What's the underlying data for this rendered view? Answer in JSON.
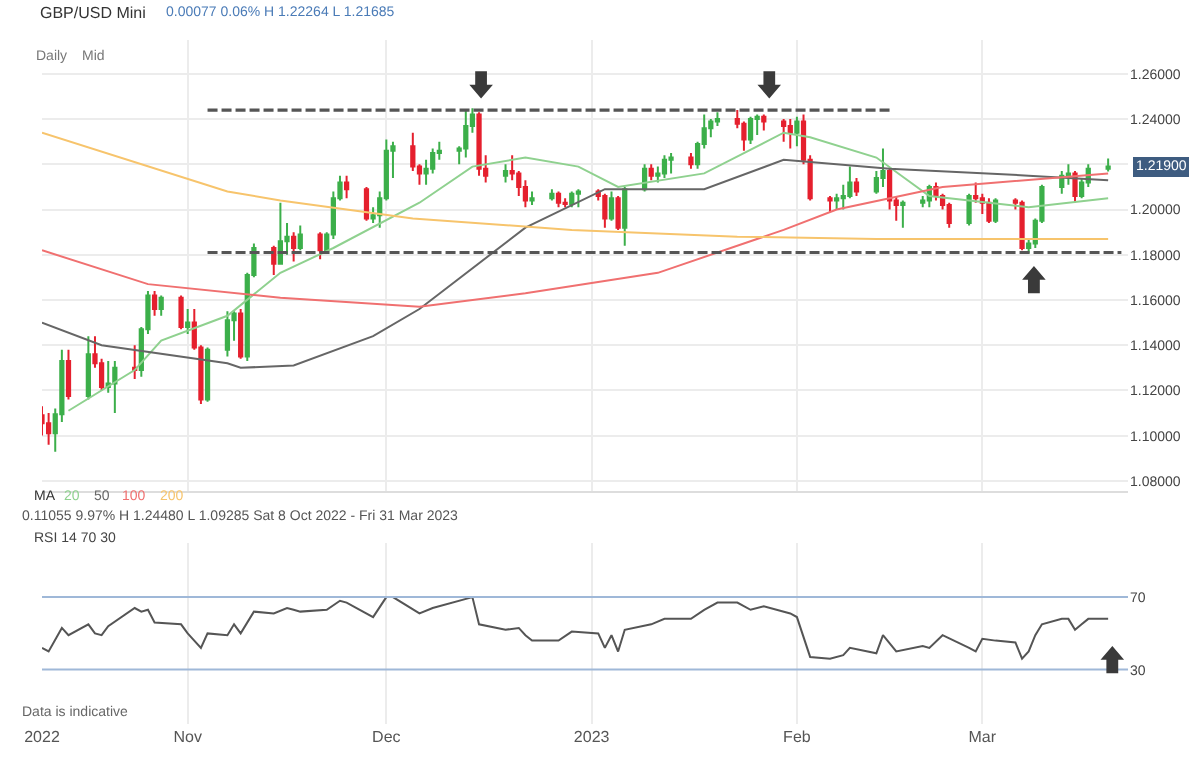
{
  "chart_data": [
    {
      "type": "candlestick",
      "title": "GBP/USD Mini",
      "x": [
        "2022-10-10",
        "2022-10-11",
        "2022-10-12",
        "2022-10-13",
        "2022-10-14",
        "2022-10-17",
        "2022-10-18",
        "2022-10-19",
        "2022-10-20",
        "2022-10-21",
        "2022-10-24",
        "2022-10-25",
        "2022-10-26",
        "2022-10-27",
        "2022-10-28",
        "2022-10-31",
        "2022-11-01",
        "2022-11-02",
        "2022-11-03",
        "2022-11-04",
        "2022-11-07",
        "2022-11-08",
        "2022-11-09",
        "2022-11-10",
        "2022-11-11",
        "2022-11-14",
        "2022-11-15",
        "2022-11-16",
        "2022-11-17",
        "2022-11-18",
        "2022-11-21",
        "2022-11-22",
        "2022-11-23",
        "2022-11-24",
        "2022-11-25",
        "2022-11-28",
        "2022-11-29",
        "2022-11-30",
        "2022-12-01",
        "2022-12-02",
        "2022-12-05",
        "2022-12-06",
        "2022-12-07",
        "2022-12-08",
        "2022-12-09",
        "2022-12-12",
        "2022-12-13",
        "2022-12-14",
        "2022-12-15",
        "2022-12-16",
        "2022-12-19",
        "2022-12-20",
        "2022-12-21",
        "2022-12-22",
        "2022-12-23",
        "2022-12-26",
        "2022-12-27",
        "2022-12-28",
        "2022-12-29",
        "2022-12-30",
        "2023-01-02",
        "2023-01-03",
        "2023-01-04",
        "2023-01-05",
        "2023-01-06",
        "2023-01-09",
        "2023-01-10",
        "2023-01-11",
        "2023-01-12",
        "2023-01-13",
        "2023-01-16",
        "2023-01-17",
        "2023-01-18",
        "2023-01-19",
        "2023-01-20",
        "2023-01-23",
        "2023-01-24",
        "2023-01-25",
        "2023-01-26",
        "2023-01-27",
        "2023-01-30",
        "2023-01-31",
        "2023-02-01",
        "2023-02-02",
        "2023-02-03",
        "2023-02-06",
        "2023-02-07",
        "2023-02-08",
        "2023-02-09",
        "2023-02-10",
        "2023-02-13",
        "2023-02-14",
        "2023-02-15",
        "2023-02-16",
        "2023-02-17",
        "2023-02-20",
        "2023-02-21",
        "2023-02-22",
        "2023-02-23",
        "2023-02-24",
        "2023-02-27",
        "2023-02-28",
        "2023-03-01",
        "2023-03-02",
        "2023-03-03",
        "2023-03-06",
        "2023-03-07",
        "2023-03-08",
        "2023-03-09",
        "2023-03-10",
        "2023-03-13",
        "2023-03-14",
        "2023-03-15",
        "2023-03-16",
        "2023-03-17",
        "2023-03-20"
      ],
      "ohlc": [
        [
          1.109,
          1.113,
          1.1,
          1.1055
        ],
        [
          1.1055,
          1.11,
          1.096,
          1.101
        ],
        [
          1.101,
          1.112,
          1.0929,
          1.1095
        ],
        [
          1.1095,
          1.138,
          1.106,
          1.133
        ],
        [
          1.133,
          1.138,
          1.116,
          1.1175
        ],
        [
          1.1175,
          1.144,
          1.116,
          1.136
        ],
        [
          1.136,
          1.144,
          1.13,
          1.132
        ],
        [
          1.132,
          1.134,
          1.12,
          1.1215
        ],
        [
          1.1215,
          1.133,
          1.119,
          1.123
        ],
        [
          1.123,
          1.133,
          1.11,
          1.13
        ],
        [
          1.13,
          1.14,
          1.125,
          1.129
        ],
        [
          1.129,
          1.148,
          1.126,
          1.147
        ],
        [
          1.147,
          1.164,
          1.145,
          1.162
        ],
        [
          1.162,
          1.164,
          1.153,
          1.156
        ],
        [
          1.156,
          1.162,
          1.153,
          1.161
        ],
        [
          1.161,
          1.162,
          1.147,
          1.148
        ],
        [
          1.148,
          1.156,
          1.145,
          1.15
        ],
        [
          1.15,
          1.156,
          1.138,
          1.139
        ],
        [
          1.139,
          1.14,
          1.114,
          1.116
        ],
        [
          1.116,
          1.139,
          1.115,
          1.138
        ],
        [
          1.138,
          1.155,
          1.135,
          1.151
        ],
        [
          1.151,
          1.155,
          1.142,
          1.154
        ],
        [
          1.154,
          1.156,
          1.134,
          1.135
        ],
        [
          1.135,
          1.172,
          1.133,
          1.171
        ],
        [
          1.171,
          1.185,
          1.17,
          1.183
        ],
        [
          1.183,
          1.184,
          1.171,
          1.176
        ],
        [
          1.176,
          1.203,
          1.176,
          1.186
        ],
        [
          1.186,
          1.194,
          1.18,
          1.188
        ],
        [
          1.188,
          1.19,
          1.177,
          1.183
        ],
        [
          1.183,
          1.193,
          1.182,
          1.189
        ],
        [
          1.189,
          1.19,
          1.178,
          1.182
        ],
        [
          1.182,
          1.19,
          1.181,
          1.189
        ],
        [
          1.189,
          1.208,
          1.187,
          1.205
        ],
        [
          1.205,
          1.215,
          1.204,
          1.212
        ],
        [
          1.212,
          1.215,
          1.205,
          1.209
        ],
        [
          1.209,
          1.21,
          1.195,
          1.196
        ],
        [
          1.196,
          1.201,
          1.194,
          1.1975
        ],
        [
          1.1975,
          1.208,
          1.192,
          1.205
        ],
        [
          1.205,
          1.231,
          1.204,
          1.226
        ],
        [
          1.226,
          1.23,
          1.214,
          1.228
        ],
        [
          1.228,
          1.234,
          1.217,
          1.219
        ],
        [
          1.219,
          1.22,
          1.211,
          1.216
        ],
        [
          1.216,
          1.222,
          1.211,
          1.218
        ],
        [
          1.218,
          1.227,
          1.216,
          1.225
        ],
        [
          1.225,
          1.23,
          1.222,
          1.226
        ],
        [
          1.226,
          1.228,
          1.22,
          1.227
        ],
        [
          1.227,
          1.2445,
          1.223,
          1.237
        ],
        [
          1.237,
          1.2448,
          1.234,
          1.242
        ],
        [
          1.242,
          1.243,
          1.215,
          1.218
        ],
        [
          1.218,
          1.224,
          1.212,
          1.215
        ],
        [
          1.215,
          1.22,
          1.212,
          1.217
        ],
        [
          1.217,
          1.224,
          1.213,
          1.216
        ],
        [
          1.216,
          1.217,
          1.206,
          1.21
        ],
        [
          1.21,
          1.213,
          1.201,
          1.204
        ],
        [
          1.204,
          1.208,
          1.202,
          1.205
        ],
        [
          1.205,
          1.209,
          1.204,
          1.207
        ],
        [
          1.207,
          1.208,
          1.201,
          1.203
        ],
        [
          1.203,
          1.205,
          1.201,
          1.2025
        ],
        [
          1.2025,
          1.208,
          1.201,
          1.207
        ],
        [
          1.207,
          1.209,
          1.201,
          1.208
        ],
        [
          1.208,
          1.209,
          1.204,
          1.206
        ],
        [
          1.206,
          1.207,
          1.192,
          1.196
        ],
        [
          1.196,
          1.208,
          1.195,
          1.205
        ],
        [
          1.205,
          1.206,
          1.191,
          1.192
        ],
        [
          1.192,
          1.21,
          1.184,
          1.209
        ],
        [
          1.209,
          1.22,
          1.208,
          1.218
        ],
        [
          1.218,
          1.22,
          1.213,
          1.215
        ],
        [
          1.215,
          1.219,
          1.212,
          1.216
        ],
        [
          1.216,
          1.224,
          1.214,
          1.222
        ],
        [
          1.222,
          1.225,
          1.216,
          1.223
        ],
        [
          1.223,
          1.225,
          1.218,
          1.22
        ],
        [
          1.22,
          1.23,
          1.218,
          1.229
        ],
        [
          1.229,
          1.242,
          1.227,
          1.236
        ],
        [
          1.236,
          1.24,
          1.232,
          1.239
        ],
        [
          1.239,
          1.243,
          1.237,
          1.24
        ],
        [
          1.24,
          1.244,
          1.236,
          1.238
        ],
        [
          1.238,
          1.239,
          1.226,
          1.231
        ],
        [
          1.231,
          1.241,
          1.229,
          1.24
        ],
        [
          1.24,
          1.242,
          1.233,
          1.241
        ],
        [
          1.241,
          1.242,
          1.235,
          1.239
        ],
        [
          1.239,
          1.24,
          1.23,
          1.237
        ],
        [
          1.237,
          1.24,
          1.227,
          1.234
        ],
        [
          1.234,
          1.241,
          1.228,
          1.239
        ],
        [
          1.239,
          1.242,
          1.22,
          1.222
        ],
        [
          1.222,
          1.224,
          1.204,
          1.205
        ],
        [
          1.205,
          1.206,
          1.199,
          1.204
        ],
        [
          1.204,
          1.207,
          1.2,
          1.205
        ],
        [
          1.205,
          1.211,
          1.2,
          1.206
        ],
        [
          1.206,
          1.219,
          1.205,
          1.212
        ],
        [
          1.212,
          1.214,
          1.206,
          1.208
        ],
        [
          1.208,
          1.217,
          1.207,
          1.214
        ],
        [
          1.214,
          1.227,
          1.21,
          1.217
        ],
        [
          1.217,
          1.218,
          1.2,
          1.204
        ],
        [
          1.204,
          1.206,
          1.195,
          1.202
        ],
        [
          1.202,
          1.204,
          1.192,
          1.203
        ],
        [
          1.203,
          1.206,
          1.201,
          1.204
        ],
        [
          1.204,
          1.211,
          1.201,
          1.21
        ],
        [
          1.21,
          1.212,
          1.204,
          1.206
        ],
        [
          1.206,
          1.207,
          1.2,
          1.202
        ],
        [
          1.202,
          1.203,
          1.192,
          1.194
        ],
        [
          1.194,
          1.207,
          1.193,
          1.206
        ],
        [
          1.206,
          1.212,
          1.203,
          1.205
        ],
        [
          1.205,
          1.207,
          1.198,
          1.203
        ],
        [
          1.203,
          1.205,
          1.194,
          1.195
        ],
        [
          1.195,
          1.205,
          1.194,
          1.204
        ],
        [
          1.204,
          1.205,
          1.2,
          1.203
        ],
        [
          1.203,
          1.204,
          1.182,
          1.183
        ],
        [
          1.183,
          1.187,
          1.1805,
          1.185
        ],
        [
          1.185,
          1.196,
          1.183,
          1.195
        ],
        [
          1.195,
          1.211,
          1.194,
          1.21
        ],
        [
          1.21,
          1.217,
          1.207,
          1.215
        ],
        [
          1.215,
          1.22,
          1.211,
          1.216
        ],
        [
          1.216,
          1.217,
          1.203,
          1.206
        ],
        [
          1.206,
          1.214,
          1.205,
          1.212
        ],
        [
          1.212,
          1.22,
          1.21,
          1.218
        ],
        [
          1.218,
          1.2226,
          1.2168,
          1.219
        ]
      ],
      "colors": [
        "#e5202e",
        "#e5202e",
        "#3caf4a",
        "#3caf4a",
        "#e5202e",
        "#3caf4a",
        "#e5202e",
        "#e5202e",
        "#3caf4a",
        "#3caf4a",
        "#e5202e",
        "#3caf4a",
        "#3caf4a",
        "#e5202e",
        "#3caf4a",
        "#e5202e",
        "#3caf4a",
        "#e5202e",
        "#e5202e",
        "#3caf4a",
        "#3caf4a",
        "#3caf4a",
        "#e5202e",
        "#3caf4a",
        "#3caf4a",
        "#e5202e",
        "#3caf4a",
        "#3caf4a",
        "#e5202e",
        "#3caf4a",
        "#e5202e",
        "#3caf4a",
        "#3caf4a",
        "#3caf4a",
        "#e5202e",
        "#e5202e",
        "#3caf4a",
        "#3caf4a",
        "#3caf4a",
        "#3caf4a",
        "#e5202e",
        "#e5202e",
        "#3caf4a",
        "#3caf4a",
        "#3caf4a",
        "#3caf4a",
        "#3caf4a",
        "#3caf4a",
        "#e5202e",
        "#e5202e",
        "#3caf4a",
        "#e5202e",
        "#e5202e",
        "#e5202e",
        "#3caf4a",
        "#3caf4a",
        "#e5202e",
        "#e5202e",
        "#3caf4a",
        "#3caf4a",
        "#e5202e",
        "#e5202e",
        "#3caf4a",
        "#e5202e",
        "#3caf4a",
        "#3caf4a",
        "#e5202e",
        "#3caf4a",
        "#3caf4a",
        "#3caf4a",
        "#e5202e",
        "#3caf4a",
        "#3caf4a",
        "#3caf4a",
        "#3caf4a",
        "#e5202e",
        "#e5202e",
        "#3caf4a",
        "#3caf4a",
        "#e5202e",
        "#e5202e",
        "#e5202e",
        "#3caf4a",
        "#e5202e",
        "#e5202e",
        "#e5202e",
        "#3caf4a",
        "#3caf4a",
        "#3caf4a",
        "#e5202e",
        "#3caf4a",
        "#3caf4a",
        "#e5202e",
        "#e5202e",
        "#3caf4a",
        "#3caf4a",
        "#3caf4a",
        "#e5202e",
        "#e5202e",
        "#e5202e",
        "#3caf4a",
        "#e5202e",
        "#e5202e",
        "#e5202e",
        "#3caf4a",
        "#e5202e",
        "#e5202e",
        "#3caf4a",
        "#3caf4a",
        "#3caf4a",
        "#3caf4a",
        "#3caf4a",
        "#e5202e",
        "#3caf4a",
        "#3caf4a",
        "#3caf4a"
      ],
      "series": [
        {
          "type": "line",
          "name": "20",
          "color": "#8fd18f",
          "x": [
            "2022-10-14",
            "2022-10-24",
            "2022-10-28",
            "2022-11-07",
            "2022-11-15",
            "2022-11-23",
            "2022-12-06",
            "2022-12-14",
            "2022-12-22",
            "2022-12-30",
            "2023-01-05",
            "2023-01-18",
            "2023-01-24",
            "2023-01-30",
            "2023-02-03",
            "2023-02-13",
            "2023-02-21",
            "2023-03-08",
            "2023-03-20"
          ],
          "values": [
            1.111,
            1.129,
            1.142,
            1.153,
            1.172,
            1.183,
            1.203,
            1.219,
            1.223,
            1.219,
            1.21,
            1.216,
            1.225,
            1.234,
            1.232,
            1.223,
            1.206,
            1.201,
            1.205
          ]
        },
        {
          "type": "line",
          "name": "50",
          "color": "#666666",
          "x": [
            "2022-10-10",
            "2022-10-19",
            "2022-11-07",
            "2022-11-09",
            "2022-11-17",
            "2022-11-29",
            "2022-12-06",
            "2022-12-22",
            "2023-01-03",
            "2023-01-18",
            "2023-01-30",
            "2023-02-15",
            "2023-03-08",
            "2023-03-20"
          ],
          "values": [
            1.15,
            1.14,
            1.132,
            1.13,
            1.131,
            1.144,
            1.156,
            1.192,
            1.209,
            1.209,
            1.222,
            1.218,
            1.215,
            1.213
          ]
        },
        {
          "type": "line",
          "name": "100",
          "color": "#f07070",
          "x": [
            "2022-10-10",
            "2022-10-26",
            "2022-11-15",
            "2022-12-06",
            "2022-12-22",
            "2023-01-11",
            "2023-01-30",
            "2023-02-07",
            "2023-02-23",
            "2023-03-20"
          ],
          "values": [
            1.182,
            1.167,
            1.161,
            1.157,
            1.163,
            1.172,
            1.191,
            1.2,
            1.21,
            1.216
          ]
        },
        {
          "type": "line",
          "name": "200",
          "color": "#f7c46c",
          "x": [
            "2022-10-10",
            "2022-11-07",
            "2022-11-15",
            "2022-12-05",
            "2022-12-29",
            "2023-01-23",
            "2023-02-13",
            "2023-03-20"
          ],
          "values": [
            1.234,
            1.208,
            1.204,
            1.196,
            1.191,
            1.188,
            1.187,
            1.187
          ]
        },
        {
          "type": "line",
          "color": "#555555",
          "line_style": "dashed",
          "x": [
            "2022-11-04",
            "2023-02-15"
          ],
          "values": [
            1.244,
            1.244
          ]
        },
        {
          "type": "line",
          "color": "#555555",
          "line_style": "dashed",
          "x": [
            "2022-11-04",
            "2023-03-22"
          ],
          "values": [
            1.181,
            1.181
          ]
        }
      ],
      "xlim": [
        "2022-10-10",
        "2023-03-23"
      ],
      "xticks": [
        {
          "value": "2022-10-10",
          "label": null
        },
        {
          "value": "2022-11-01",
          "label": null
        },
        {
          "value": "2022-12-01",
          "label": null
        },
        {
          "value": "2023-01-01",
          "label": null
        },
        {
          "value": "2023-02-01",
          "label": null
        },
        {
          "value": "2023-03-01",
          "label": null
        }
      ],
      "tick_labels": "y",
      "ylim": [
        1.075,
        1.275
      ],
      "yticks": [
        {
          "value": 1.08,
          "label": "1.08000"
        },
        {
          "value": 1.1,
          "label": "1.10000"
        },
        {
          "value": 1.12,
          "label": "1.12000"
        },
        {
          "value": 1.14,
          "label": "1.14000"
        },
        {
          "value": 1.16,
          "label": "1.16000"
        },
        {
          "value": 1.18,
          "label": "1.18000"
        },
        {
          "value": 1.2,
          "label": "1.20000"
        },
        {
          "value": 1.22,
          "label": null
        },
        {
          "value": 1.24,
          "label": "1.24000"
        },
        {
          "value": 1.26,
          "label": "1.26000"
        }
      ],
      "legend": "bottom left",
      "legend_title": "MA",
      "grid": true,
      "marker": "none",
      "annotations": [
        "0.00077 0.06% H 1.22264 L 1.21685",
        "Daily",
        "Mid",
        "0.11055 9.97% H 1.24480 L 1.09285 Sat 8 Oct 2022 - Fri 31 Mar 2023",
        {
          "text": "1.21900",
          "x": "2023-03-20",
          "y": 1.219
        }
      ]
    },
    {
      "type": "line",
      "series": [
        {
          "color": "#555555",
          "x": [
            "2022-10-10",
            "2022-10-11",
            "2022-10-13",
            "2022-10-14",
            "2022-10-17",
            "2022-10-18",
            "2022-10-19",
            "2022-10-20",
            "2022-10-24",
            "2022-10-25",
            "2022-10-26",
            "2022-10-27",
            "2022-10-31",
            "2022-11-01",
            "2022-11-03",
            "2022-11-04",
            "2022-11-07",
            "2022-11-08",
            "2022-11-09",
            "2022-11-11",
            "2022-11-14",
            "2022-11-16",
            "2022-11-17",
            "2022-11-18",
            "2022-11-22",
            "2022-11-24",
            "2022-11-25",
            "2022-11-29",
            "2022-12-01",
            "2022-12-02",
            "2022-12-06",
            "2022-12-08",
            "2022-12-14",
            "2022-12-15",
            "2022-12-19",
            "2022-12-21",
            "2022-12-22",
            "2022-12-23",
            "2022-12-27",
            "2022-12-29",
            "2023-01-02",
            "2023-01-03",
            "2023-01-04",
            "2023-01-05",
            "2023-01-06",
            "2023-01-10",
            "2023-01-12",
            "2023-01-16",
            "2023-01-18",
            "2023-01-20",
            "2023-01-23",
            "2023-01-25",
            "2023-01-27",
            "2023-01-31",
            "2023-02-01",
            "2023-02-03",
            "2023-02-06",
            "2023-02-08",
            "2023-02-09",
            "2023-02-13",
            "2023-02-14",
            "2023-02-16",
            "2023-02-20",
            "2023-02-21",
            "2023-02-23",
            "2023-02-27",
            "2023-02-28",
            "2023-03-01",
            "2023-03-03",
            "2023-03-06",
            "2023-03-07",
            "2023-03-08",
            "2023-03-09",
            "2023-03-10",
            "2023-03-13",
            "2023-03-14",
            "2023-03-15",
            "2023-03-16",
            "2023-03-17",
            "2023-03-20"
          ],
          "values": [
            42,
            40,
            53,
            49,
            55,
            50,
            49,
            54,
            64,
            62,
            63,
            56,
            55,
            50,
            42,
            50,
            49,
            55,
            50,
            62,
            61,
            64,
            63,
            62,
            63,
            68,
            67,
            59,
            70,
            70,
            61,
            64,
            70,
            55,
            52,
            53,
            49,
            46,
            46,
            51,
            50,
            42,
            49,
            40,
            52,
            55,
            58,
            58,
            63,
            67,
            67,
            63,
            65,
            61,
            59,
            37,
            36,
            38,
            42,
            39,
            49,
            40,
            43,
            42,
            49,
            42,
            40,
            47,
            46,
            45,
            36,
            40,
            49,
            55,
            58,
            58,
            52,
            55,
            58,
            58
          ]
        }
      ],
      "xlim": [
        "2022-10-10",
        "2023-03-23"
      ],
      "xticks": [
        {
          "value": "2022-10-10",
          "label": "2022"
        },
        {
          "value": "2022-11-01",
          "label": "Nov"
        },
        {
          "value": "2022-12-01",
          "label": "Dec"
        },
        {
          "value": "2023-01-01",
          "label": "2023"
        },
        {
          "value": "2023-02-01",
          "label": "Feb"
        },
        {
          "value": "2023-03-01",
          "label": "Mar"
        }
      ],
      "ylim": [
        0,
        100
      ],
      "yticks": [
        30,
        70
      ],
      "ref_lines": [
        {
          "axis": "y",
          "value": 70,
          "color": "#9fb8d8"
        },
        {
          "axis": "y",
          "value": 30,
          "color": "#9fb8d8"
        }
      ],
      "grid": "x",
      "marker": "none",
      "annotations": [
        "RSI 14 70 30",
        "Data is indicative"
      ]
    }
  ]
}
